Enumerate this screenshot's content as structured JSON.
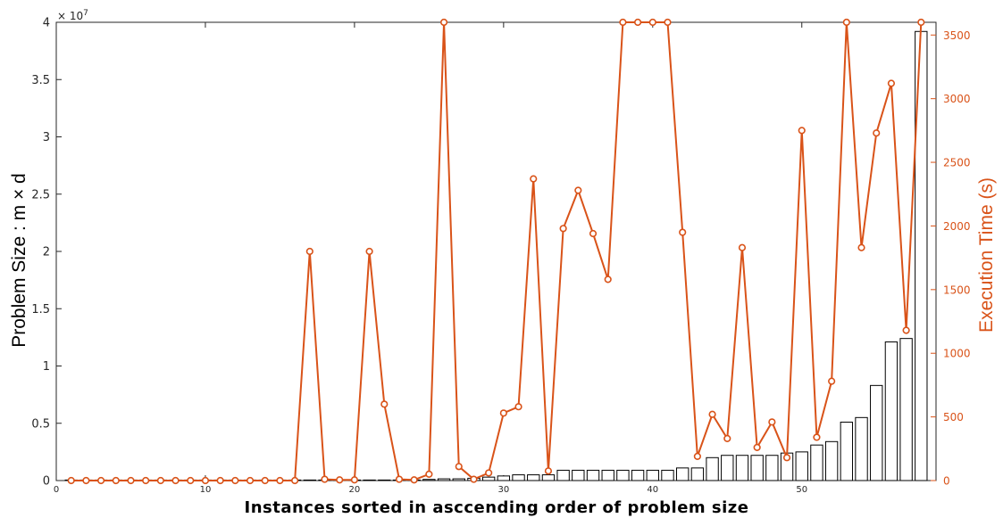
{
  "chart_data": {
    "type": "bar",
    "xlabel": "Instances sorted in asccending order of problem size",
    "ylabel": "Problem Size : m × d",
    "y2label": "Execution Time (s)",
    "y_exponent_base": "× 10",
    "y_exponent_power": "7",
    "xlim": [
      0,
      59
    ],
    "ylim": [
      0,
      40000000
    ],
    "y2lim": [
      0,
      3600
    ],
    "x_ticks": [
      {
        "value": 0,
        "label": "0"
      },
      {
        "value": 10,
        "label": "10"
      },
      {
        "value": 20,
        "label": "20"
      },
      {
        "value": 30,
        "label": "30"
      },
      {
        "value": 40,
        "label": "40"
      },
      {
        "value": 50,
        "label": "50"
      }
    ],
    "y_ticks": [
      {
        "value": 0,
        "label": "0"
      },
      {
        "value": 5000000,
        "label": "0.5"
      },
      {
        "value": 10000000,
        "label": "1"
      },
      {
        "value": 15000000,
        "label": "1.5"
      },
      {
        "value": 20000000,
        "label": "2"
      },
      {
        "value": 25000000,
        "label": "2.5"
      },
      {
        "value": 30000000,
        "label": "3"
      },
      {
        "value": 35000000,
        "label": "3.5"
      },
      {
        "value": 40000000,
        "label": "4"
      }
    ],
    "y2_ticks": [
      {
        "value": 0,
        "label": "0"
      },
      {
        "value": 500,
        "label": "500"
      },
      {
        "value": 1000,
        "label": "1000"
      },
      {
        "value": 1500,
        "label": "1500"
      },
      {
        "value": 2000,
        "label": "2000"
      },
      {
        "value": 2500,
        "label": "2500"
      },
      {
        "value": 3000,
        "label": "3000"
      },
      {
        "value": 3500,
        "label": "3500"
      }
    ],
    "x": [
      1,
      2,
      3,
      4,
      5,
      6,
      7,
      8,
      9,
      10,
      11,
      12,
      13,
      14,
      15,
      16,
      17,
      18,
      19,
      20,
      21,
      22,
      23,
      24,
      25,
      26,
      27,
      28,
      29,
      30,
      31,
      32,
      33,
      34,
      35,
      36,
      37,
      38,
      39,
      40,
      41,
      42,
      43,
      44,
      45,
      46,
      47,
      48,
      49,
      50,
      51,
      52,
      53,
      54,
      55,
      56,
      57,
      58
    ],
    "series": [
      {
        "kind": "bar",
        "color": "#000000",
        "values": [
          0,
          0,
          0,
          0,
          0,
          0,
          0,
          0,
          0,
          0,
          0,
          0,
          0,
          0,
          0,
          0,
          0,
          0,
          0,
          0,
          0,
          0,
          0,
          0,
          100000,
          150000,
          150000,
          200000,
          300000,
          400000,
          500000,
          500000,
          500000,
          900000,
          900000,
          900000,
          900000,
          900000,
          900000,
          900000,
          900000,
          1100000,
          1100000,
          2000000,
          2200000,
          2200000,
          2200000,
          2200000,
          2400000,
          2500000,
          3100000,
          3400000,
          5100000,
          5500000,
          8300000,
          12100000,
          12400000,
          39200000
        ]
      },
      {
        "kind": "line",
        "axis": "right",
        "color": "#d95319",
        "values": [
          0,
          0,
          0,
          0,
          0,
          0,
          0,
          0,
          0,
          0,
          0,
          0,
          0,
          0,
          0,
          0,
          1800,
          10,
          5,
          5,
          1800,
          600,
          10,
          5,
          50,
          3600,
          110,
          10,
          60,
          530,
          580,
          2370,
          75,
          1980,
          2280,
          1940,
          1580,
          3600,
          3600,
          3600,
          3600,
          1950,
          190,
          520,
          330,
          1830,
          260,
          460,
          180,
          2750,
          340,
          780,
          3600,
          1830,
          2730,
          3120,
          1180,
          3600
        ]
      }
    ]
  }
}
